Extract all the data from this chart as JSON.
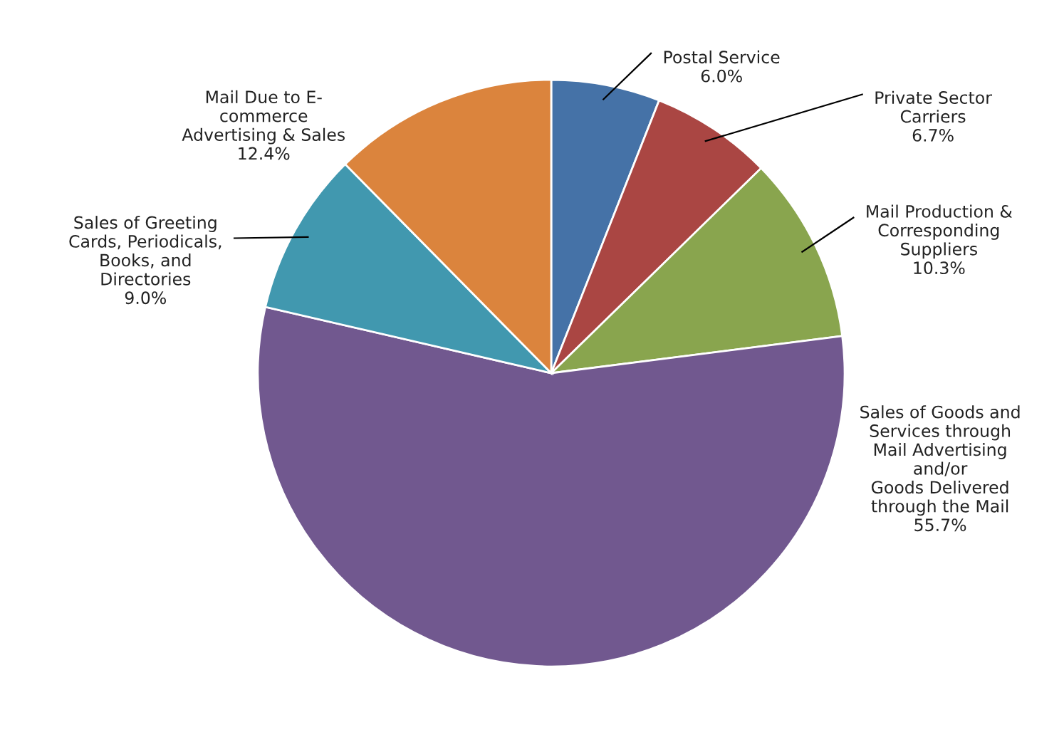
{
  "chart_data": {
    "type": "pie",
    "categories": [
      "Postal Service",
      "Private Sector\nCarriers",
      "Mail Production &\nCorresponding\nSuppliers",
      "Sales of Goods and\nServices through\nMail Advertising\nand/or\nGoods Delivered\nthrough the Mail",
      "Sales of Greeting\nCards, Periodicals,\nBooks, and\nDirectories",
      "Mail Due to E-\ncommerce\nAdvertising & Sales"
    ],
    "values": [
      6.0,
      6.7,
      10.3,
      55.7,
      9.0,
      12.4
    ],
    "value_labels": [
      "6.0%",
      "6.7%",
      "10.3%",
      "55.7%",
      "9.0%",
      "12.4%"
    ],
    "colors": [
      "#4572a7",
      "#aa4643",
      "#89a54e",
      "#71588f",
      "#4198af",
      "#db843d"
    ]
  }
}
